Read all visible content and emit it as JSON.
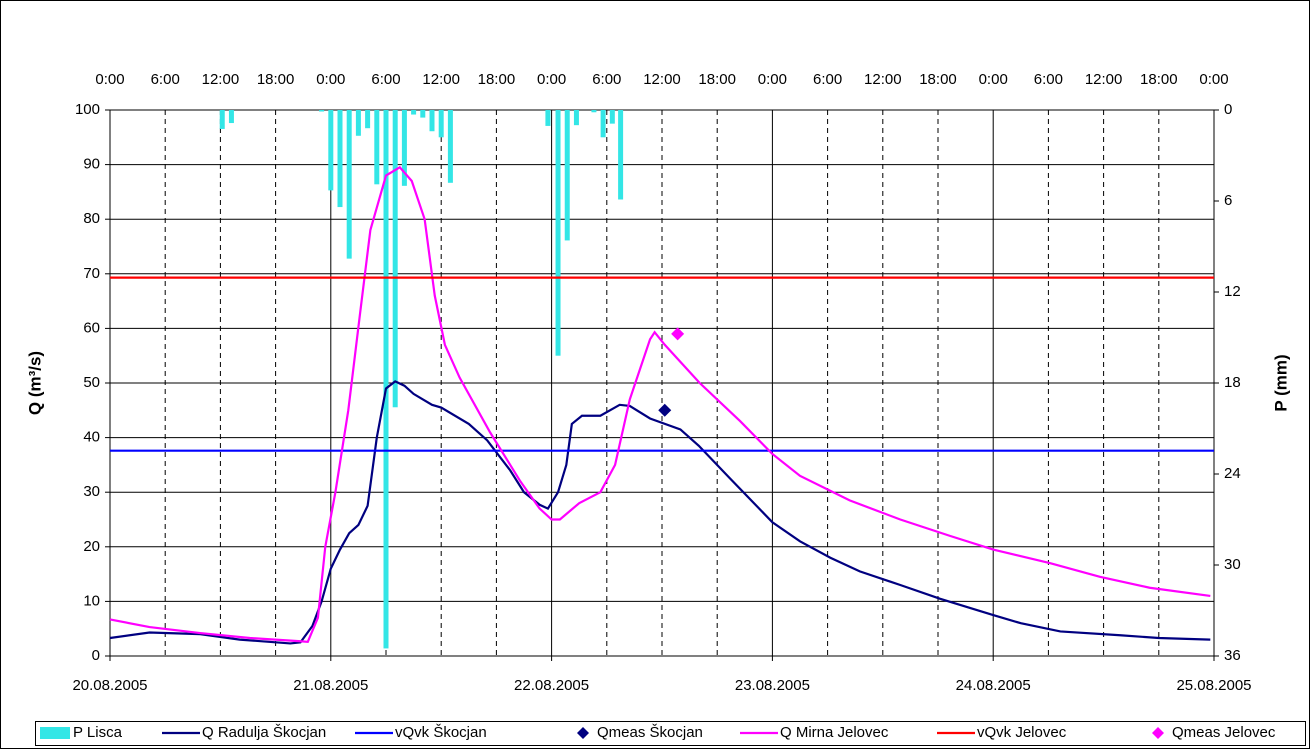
{
  "chart_data": {
    "type": "combo",
    "ylabel": "Q (m³/s)",
    "y2label": "P (mm)",
    "xlim": [
      0,
      120
    ],
    "xticks": [
      {
        "value": 0,
        "label": "20.08.2005"
      },
      {
        "value": 24,
        "label": "21.08.2005"
      },
      {
        "value": 48,
        "label": "22.08.2005"
      },
      {
        "value": 72,
        "label": "23.08.2005"
      },
      {
        "value": 96,
        "label": "24.08.2005"
      },
      {
        "value": 120,
        "label": "25.08.2005"
      }
    ],
    "x2ticks": [
      {
        "value": 0,
        "label": "0:00"
      },
      {
        "value": 6,
        "label": "6:00"
      },
      {
        "value": 12,
        "label": "12:00"
      },
      {
        "value": 18,
        "label": "18:00"
      },
      {
        "value": 24,
        "label": "0:00"
      },
      {
        "value": 30,
        "label": "6:00"
      },
      {
        "value": 36,
        "label": "12:00"
      },
      {
        "value": 42,
        "label": "18:00"
      },
      {
        "value": 48,
        "label": "0:00"
      },
      {
        "value": 54,
        "label": "6:00"
      },
      {
        "value": 60,
        "label": "12:00"
      },
      {
        "value": 66,
        "label": "18:00"
      },
      {
        "value": 72,
        "label": "0:00"
      },
      {
        "value": 78,
        "label": "6:00"
      },
      {
        "value": 84,
        "label": "12:00"
      },
      {
        "value": 90,
        "label": "18:00"
      },
      {
        "value": 96,
        "label": "0:00"
      },
      {
        "value": 102,
        "label": "6:00"
      },
      {
        "value": 108,
        "label": "12:00"
      },
      {
        "value": 114,
        "label": "18:00"
      },
      {
        "value": 120,
        "label": "0:00"
      }
    ],
    "ylim": [
      0,
      100
    ],
    "yticks": [
      0,
      10,
      20,
      30,
      40,
      50,
      60,
      70,
      80,
      90,
      100
    ],
    "y2lim": [
      0,
      36
    ],
    "y2ticks": [
      0,
      6,
      12,
      18,
      24,
      30,
      36
    ],
    "y2_inverted": true,
    "grid": true,
    "legend": "bottom",
    "series": [
      {
        "name": "P Lisca",
        "type": "bar",
        "axis": "y2",
        "color": "#33e6e6",
        "x": [
          12.2,
          13.2,
          23,
          24,
          25,
          26,
          27,
          28,
          29,
          30,
          31,
          32,
          33,
          34,
          35,
          36,
          37,
          47.6,
          48.7,
          49.7,
          50.7,
          52.6,
          53.6,
          54.6,
          55.5
        ],
        "values": [
          1.25,
          0.86,
          0.1,
          5.3,
          6.4,
          9.8,
          1.7,
          1.2,
          4.9,
          35.5,
          19.6,
          5.0,
          0.3,
          0.5,
          1.4,
          1.8,
          4.8,
          1.05,
          16.2,
          8.6,
          1.0,
          0.15,
          1.8,
          0.9,
          5.9
        ]
      },
      {
        "name": "Q Radulja Škocjan",
        "type": "line",
        "color": "#000080",
        "x": [
          0,
          4.3,
          9.8,
          14.1,
          19.6,
          20.7,
          22,
          23,
          24,
          25,
          26,
          27,
          28,
          29,
          30,
          31,
          32,
          33,
          35,
          36,
          39,
          41,
          43.5,
          45,
          46.7,
          47.6,
          48.7,
          49.6,
          50.2,
          51.3,
          53.3,
          55.4,
          56.5,
          58.7,
          62,
          64,
          67.4,
          72,
          75,
          78.3,
          81.5,
          85.9,
          90.2,
          96,
          99,
          103.3,
          109.8,
          114,
          119.6
        ],
        "values": [
          3.3,
          4.3,
          4.0,
          3.0,
          2.3,
          2.5,
          5.5,
          10,
          16,
          19.5,
          22.5,
          24,
          27.5,
          40,
          49,
          50.3,
          49.5,
          48,
          46,
          45.5,
          42.5,
          39.5,
          34,
          30,
          27.7,
          27,
          30,
          35,
          42.5,
          44,
          44,
          46,
          45.8,
          43.5,
          41.5,
          38.5,
          32.5,
          24.5,
          21,
          18,
          15.5,
          13,
          10.5,
          7.5,
          6,
          4.5,
          3.8,
          3.3,
          3.0
        ]
      },
      {
        "name": "vQvk Škocjan",
        "type": "hline",
        "color": "#0000ff",
        "y": 37.6
      },
      {
        "name": "Qmeas Škocjan",
        "type": "marker",
        "color": "#000080",
        "x": [
          60.3
        ],
        "values": [
          45
        ]
      },
      {
        "name": "Q Mirna Jelovec",
        "type": "line",
        "color": "#ff00ff",
        "x": [
          0,
          4.3,
          9.8,
          15.2,
          20.7,
          21.5,
          22.6,
          23.4,
          24.5,
          25.9,
          27.2,
          28.3,
          30,
          31.5,
          32.8,
          34.2,
          35.3,
          36.4,
          38,
          41.3,
          44.6,
          46.7,
          48,
          48.9,
          51,
          53.3,
          54.9,
          56.5,
          58.7,
          59.2,
          60.3,
          64.1,
          68.5,
          72,
          75,
          80.4,
          85.9,
          91.3,
          96,
          102.2,
          107.6,
          113,
          119.6
        ],
        "values": [
          6.7,
          5.3,
          4.2,
          3.3,
          2.7,
          2.6,
          7,
          20,
          30,
          45,
          63,
          78,
          88,
          89.5,
          87,
          80,
          66,
          57,
          51,
          41,
          32,
          27,
          25,
          25,
          28,
          30,
          35,
          47,
          58,
          59.3,
          57,
          50,
          43,
          37,
          33,
          28.5,
          25,
          22,
          19.5,
          17,
          14.5,
          12.5,
          11
        ]
      },
      {
        "name": "vQvk Jelovec",
        "type": "hline",
        "color": "#ff0000",
        "y": 69.3
      },
      {
        "name": "Qmeas Jelovec",
        "type": "marker",
        "color": "#ff00ff",
        "x": [
          61.7
        ],
        "values": [
          59
        ]
      }
    ]
  }
}
